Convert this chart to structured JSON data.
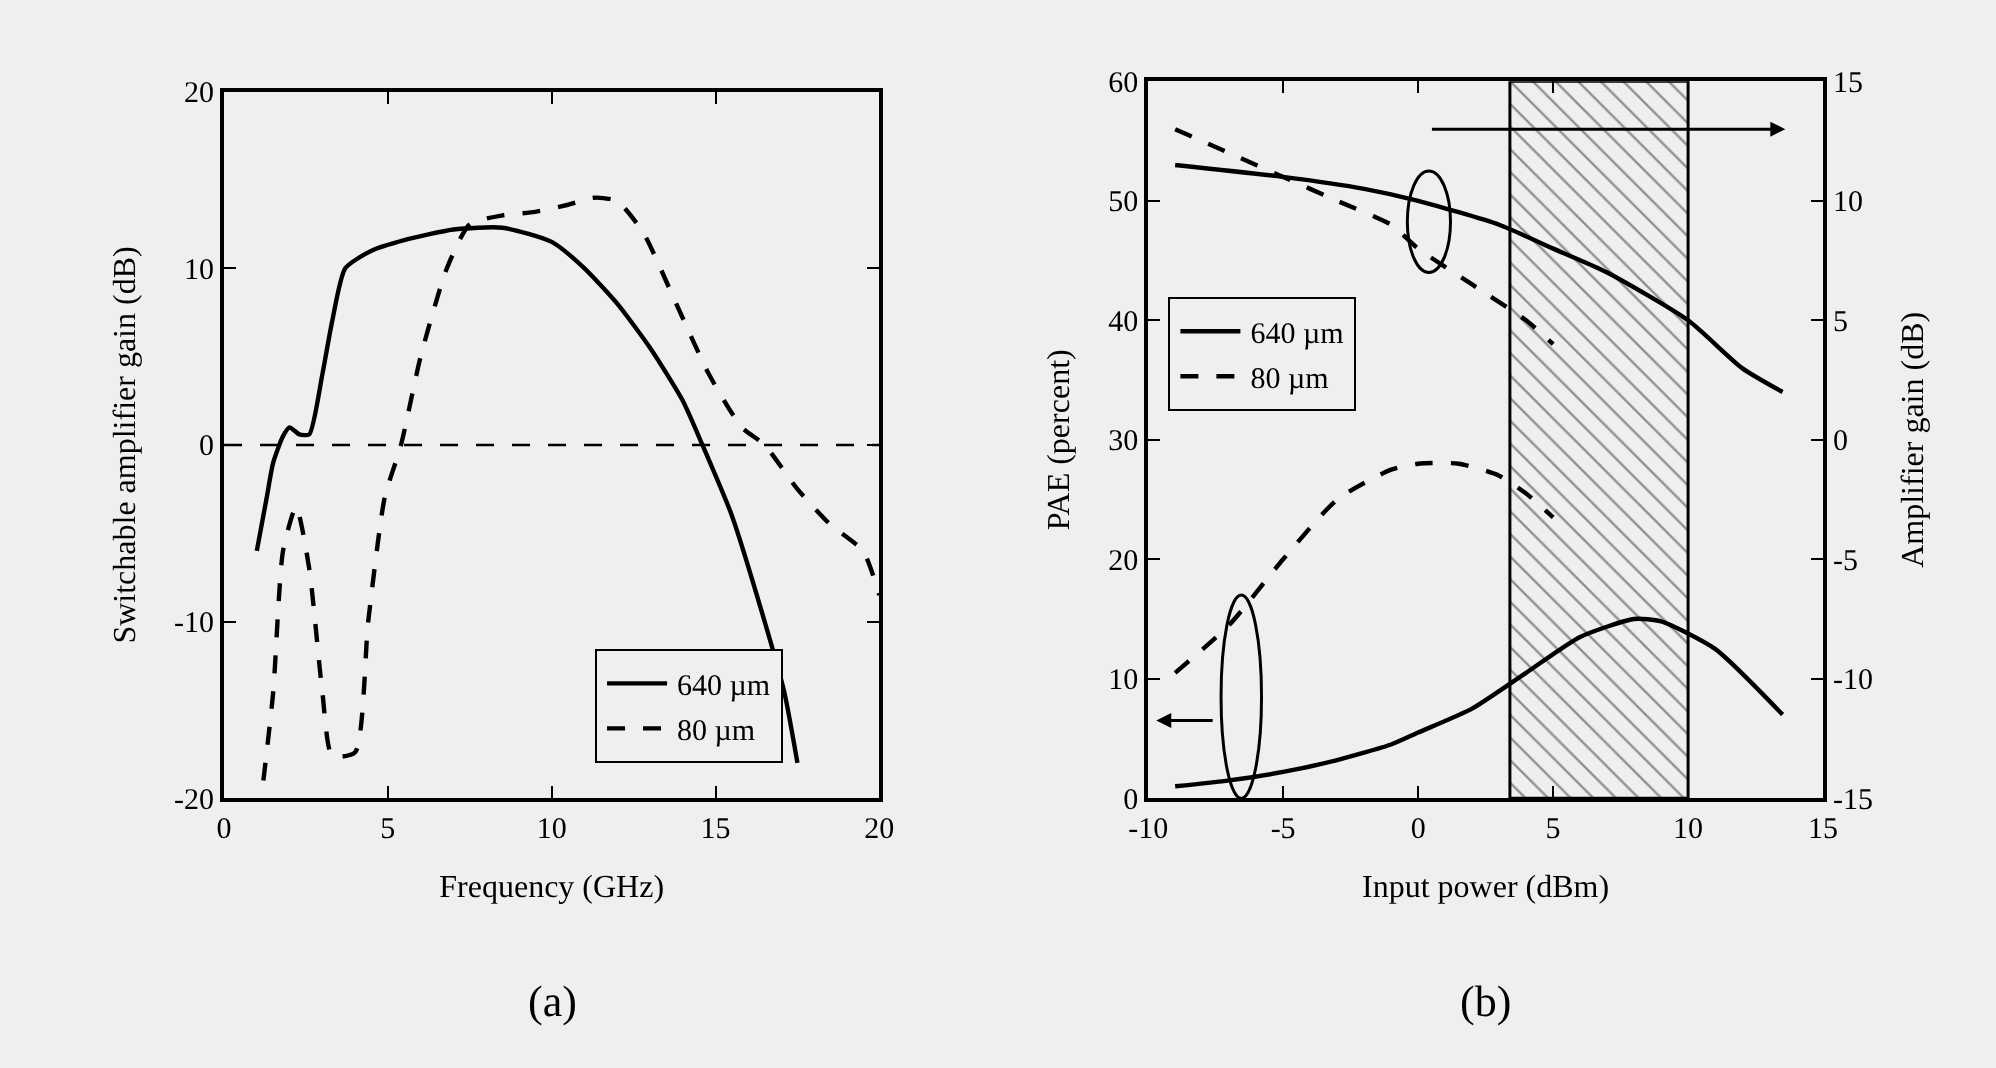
{
  "chart_data": [
    {
      "type": "line",
      "xlabel": "Frequency (GHz)",
      "ylabel": "Switchable amplifier gain (dB)",
      "annotations": [
        "(a)"
      ],
      "xlim": [
        0,
        20
      ],
      "xticks": [
        0,
        5,
        10,
        15,
        20
      ],
      "ylim": [
        -20,
        20
      ],
      "yticks": [
        -20,
        -10,
        0,
        10,
        20
      ],
      "grid": false,
      "legend": "bottom",
      "ref_lines": [
        {
          "axis": "y",
          "value": 0,
          "line_style": "dashed",
          "color": "#000000"
        }
      ],
      "series": [
        {
          "name": "640 µm",
          "color": "#000000",
          "line_style": "solid",
          "x": [
            1.0,
            1.3,
            1.5,
            1.8,
            2.0,
            2.3,
            2.6,
            3.0,
            3.3,
            3.7,
            4.5,
            5.5,
            7,
            8.5,
            10,
            11,
            12,
            13,
            14,
            14.6,
            15.5,
            16.5,
            17.1,
            17.5
          ],
          "values": [
            -6,
            -3,
            -1,
            0.5,
            1.0,
            0.6,
            0.6,
            4,
            7,
            10,
            11,
            11.6,
            12.2,
            12.3,
            11.5,
            10,
            8,
            5.5,
            2.5,
            0,
            -4,
            -10,
            -14,
            -18
          ]
        },
        {
          "name": "80 µm",
          "color": "#000000",
          "line_style": "dashed",
          "x": [
            1.2,
            1.5,
            1.8,
            2.2,
            2.6,
            3.0,
            3.3,
            4.0,
            4.4,
            4.9,
            5.4,
            6.0,
            6.8,
            7.5,
            8.5,
            9.5,
            10.5,
            11.3,
            12.0,
            12.8,
            13.8,
            14.8,
            15.8,
            16.5,
            17.5,
            18.5,
            19.5,
            20
          ],
          "values": [
            -19,
            -14,
            -6,
            -3.5,
            -7,
            -14,
            -17.6,
            -17.4,
            -10,
            -3,
            0,
            5,
            10,
            12.5,
            13,
            13.2,
            13.6,
            14,
            13.8,
            12,
            8,
            4,
            1,
            0,
            -2.5,
            -4.5,
            -6,
            -8.5
          ]
        }
      ]
    },
    {
      "type": "line",
      "xlabel": "Input power (dBm)",
      "ylabel": "PAE (percent)",
      "y2label": "Amplifier gain (dB)",
      "annotations": [
        "(b)"
      ],
      "xlim": [
        -10,
        15
      ],
      "xticks": [
        -10,
        -5,
        0,
        5,
        10,
        15
      ],
      "ylim": [
        0,
        60
      ],
      "yticks": [
        0,
        10,
        20,
        30,
        40,
        50,
        60
      ],
      "y2lim": [
        -15,
        15
      ],
      "y2ticks": [
        -15,
        -10,
        -5,
        0,
        5,
        10,
        15
      ],
      "grid": false,
      "legend": "left",
      "bands": [
        {
          "axis": "x",
          "from": 3.4,
          "to": 10,
          "color": "#333333"
        }
      ],
      "series": [
        {
          "name": "640 µm",
          "color": "#000000",
          "line_style": "solid",
          "x": [
            -9,
            -7,
            -5,
            -3,
            -1,
            0,
            2,
            4,
            6,
            8,
            9,
            11,
            13.5
          ],
          "values": [
            1,
            1.5,
            2.2,
            3.2,
            4.5,
            5.5,
            7.5,
            10.5,
            13.5,
            15,
            14.8,
            12.5,
            7
          ]
        },
        {
          "name": "80 µm",
          "color": "#000000",
          "line_style": "dashed",
          "x": [
            -9,
            -7,
            -5,
            -3,
            -1,
            0,
            1.5,
            3,
            4,
            5
          ],
          "values": [
            10.5,
            14.5,
            20,
            25,
            27.5,
            28,
            28,
            27,
            25.5,
            23.5
          ]
        },
        {
          "color": "#000000",
          "line_style": "solid",
          "axis": "y2",
          "x": [
            -9,
            -5,
            -2,
            0,
            3,
            5,
            7,
            10,
            12,
            13.5
          ],
          "values": [
            11.5,
            11,
            10.5,
            10,
            9,
            8,
            7,
            5,
            3,
            2
          ]
        },
        {
          "color": "#000000",
          "line_style": "dashed",
          "axis": "y2",
          "x": [
            -9,
            -7,
            -5,
            -3,
            -1,
            0,
            2,
            4,
            5
          ],
          "values": [
            13,
            12,
            11,
            10,
            9,
            8,
            6.5,
            5,
            4
          ]
        }
      ]
    }
  ]
}
